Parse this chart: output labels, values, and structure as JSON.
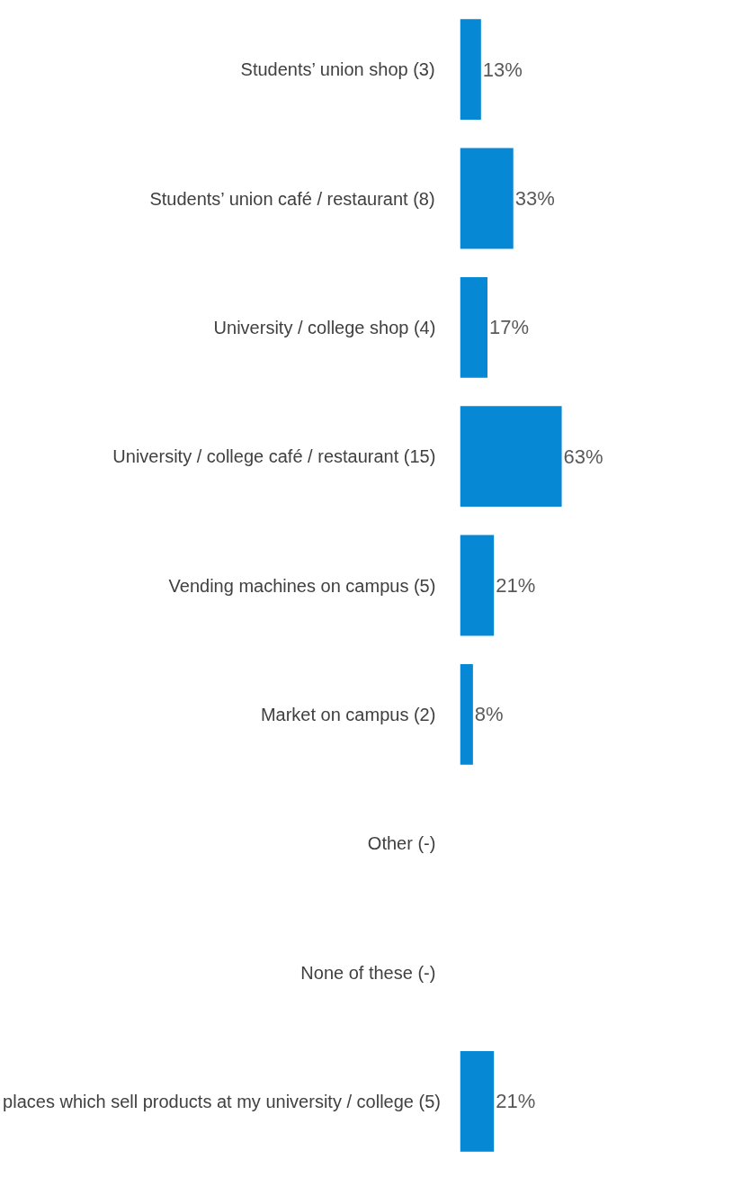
{
  "chart_data": {
    "type": "bar",
    "orientation": "horizontal",
    "categories": [
      "Students’ union shop   (3)",
      "Students’ union café / restaurant   (8)",
      "University / college shop   (4)",
      "University / college café / restaurant   (15)",
      "Vending machines on campus   (5)",
      "Market on campus   (2)",
      "Other   (-)",
      "None of these   (-)",
      "places which sell products at my university / college  (5)"
    ],
    "values": [
      13,
      33,
      17,
      63,
      21,
      8,
      null,
      null,
      21
    ],
    "value_labels": [
      "13%",
      "33%",
      "17%",
      "63%",
      "21%",
      "8%",
      null,
      null,
      "21%"
    ],
    "color": "#0788d4",
    "tick_labels": "y",
    "grid": false
  }
}
